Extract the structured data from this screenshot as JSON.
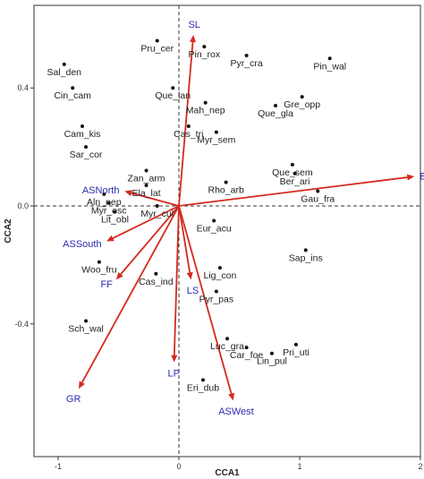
{
  "chart_data": {
    "type": "scatter",
    "title": "",
    "xlabel": "CCA1",
    "ylabel": "CCA2",
    "xlim": [
      -1.2,
      2.0
    ],
    "ylim": [
      -0.85,
      0.68
    ],
    "xticks": [
      {
        "value": -1,
        "label": "-1"
      },
      {
        "value": 0,
        "label": "0"
      },
      {
        "value": 1,
        "label": "1"
      },
      {
        "value": 2,
        "label": "2"
      }
    ],
    "yticks": [
      {
        "value": -0.4,
        "label": "-0.4"
      },
      {
        "value": 0,
        "label": "0.0"
      },
      {
        "value": 0.4,
        "label": "0.4"
      }
    ],
    "grid": false,
    "reference_lines": {
      "x": 0,
      "y": 0,
      "style": "dashed"
    },
    "colors": {
      "arrow": "#d42a1f",
      "arrow_label": "#2b2bb3",
      "point": "#111111"
    },
    "species": [
      {
        "label": "Pru_cer",
        "x": -0.18,
        "y": 0.56
      },
      {
        "label": "Pin_rox",
        "x": 0.21,
        "y": 0.54
      },
      {
        "label": "Pyr_cra",
        "x": 0.56,
        "y": 0.51
      },
      {
        "label": "Pin_wal",
        "x": 1.25,
        "y": 0.5
      },
      {
        "label": "Sal_den",
        "x": -0.95,
        "y": 0.48
      },
      {
        "label": "Cin_cam",
        "x": -0.88,
        "y": 0.4
      },
      {
        "label": "Que_lan",
        "x": -0.05,
        "y": 0.4
      },
      {
        "label": "Gre_opp",
        "x": 1.02,
        "y": 0.37
      },
      {
        "label": "Mah_nep",
        "x": 0.22,
        "y": 0.35
      },
      {
        "label": "Que_gla",
        "x": 0.8,
        "y": 0.34
      },
      {
        "label": "Cas_tri",
        "x": 0.08,
        "y": 0.27
      },
      {
        "label": "Cam_kis",
        "x": -0.8,
        "y": 0.27
      },
      {
        "label": "Myr_sem",
        "x": 0.31,
        "y": 0.25
      },
      {
        "label": "Sar_cor",
        "x": -0.77,
        "y": 0.2
      },
      {
        "label": "Que_sem",
        "x": 0.94,
        "y": 0.14
      },
      {
        "label": "Zan_arm",
        "x": -0.27,
        "y": 0.12
      },
      {
        "label": "Ber_ari",
        "x": 0.96,
        "y": 0.11
      },
      {
        "label": "Ela_lat",
        "x": -0.27,
        "y": 0.07
      },
      {
        "label": "Rho_arb",
        "x": 0.39,
        "y": 0.08
      },
      {
        "label": "Gau_fra",
        "x": 1.15,
        "y": 0.05
      },
      {
        "label": "Aln_nep",
        "x": -0.62,
        "y": 0.04
      },
      {
        "label": "Myr_esc",
        "x": -0.58,
        "y": 0.01
      },
      {
        "label": "Myr_cul",
        "x": -0.18,
        "y": 0.0
      },
      {
        "label": "Lit_obl",
        "x": -0.53,
        "y": -0.02
      },
      {
        "label": "Eur_acu",
        "x": 0.29,
        "y": -0.05
      },
      {
        "label": "Sap_ins",
        "x": 1.05,
        "y": -0.15
      },
      {
        "label": "Woo_fru",
        "x": -0.66,
        "y": -0.19
      },
      {
        "label": "Lig_con",
        "x": 0.34,
        "y": -0.21
      },
      {
        "label": "Cas_ind",
        "x": -0.19,
        "y": -0.23
      },
      {
        "label": "Pyr_pas",
        "x": 0.31,
        "y": -0.29
      },
      {
        "label": "Sch_wal",
        "x": -0.77,
        "y": -0.39
      },
      {
        "label": "Luc_gra",
        "x": 0.4,
        "y": -0.45
      },
      {
        "label": "Car_foe",
        "x": 0.56,
        "y": -0.48
      },
      {
        "label": "Pri_uti",
        "x": 0.97,
        "y": -0.47
      },
      {
        "label": "Lin_pul",
        "x": 0.77,
        "y": -0.5
      },
      {
        "label": "Eri_dub",
        "x": 0.2,
        "y": -0.59
      }
    ],
    "arrows": [
      {
        "label": "SL",
        "x": 0.12,
        "y": 0.58
      },
      {
        "label": "Elv",
        "x": 1.95,
        "y": 0.1
      },
      {
        "label": "ASNorth",
        "x": -0.45,
        "y": 0.05
      },
      {
        "label": "ASSouth",
        "x": -0.6,
        "y": -0.12
      },
      {
        "label": "FF",
        "x": -0.52,
        "y": -0.25
      },
      {
        "label": "LS",
        "x": 0.1,
        "y": -0.25
      },
      {
        "label": "LP",
        "x": -0.04,
        "y": -0.53
      },
      {
        "label": "GR",
        "x": -0.83,
        "y": -0.62
      },
      {
        "label": "ASWest",
        "x": 0.45,
        "y": -0.66
      }
    ]
  }
}
